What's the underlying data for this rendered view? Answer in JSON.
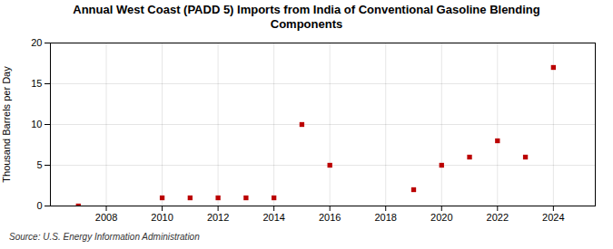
{
  "chart_data": {
    "type": "scatter",
    "title": "Annual West Coast (PADD 5) Imports from India of Conventional Gasoline Blending\nComponents",
    "ylabel": "Thousand Barrels per Day",
    "source": "Source: U.S. Energy Information Administration",
    "x": [
      2007,
      2010,
      2011,
      2012,
      2013,
      2014,
      2015,
      2016,
      2019,
      2020,
      2021,
      2022,
      2023,
      2024
    ],
    "values": [
      0,
      1,
      1,
      1,
      1,
      1,
      10,
      5,
      2,
      5,
      6,
      8,
      6,
      17
    ],
    "color": "#bb0000",
    "marker": "square",
    "xlim": [
      2006.0,
      2025.5
    ],
    "ylim": [
      0,
      20
    ],
    "xticks": [
      2008,
      2010,
      2012,
      2014,
      2016,
      2018,
      2020,
      2022,
      2024
    ],
    "yticks": [
      0,
      5,
      10,
      15,
      20
    ],
    "grid": true
  }
}
